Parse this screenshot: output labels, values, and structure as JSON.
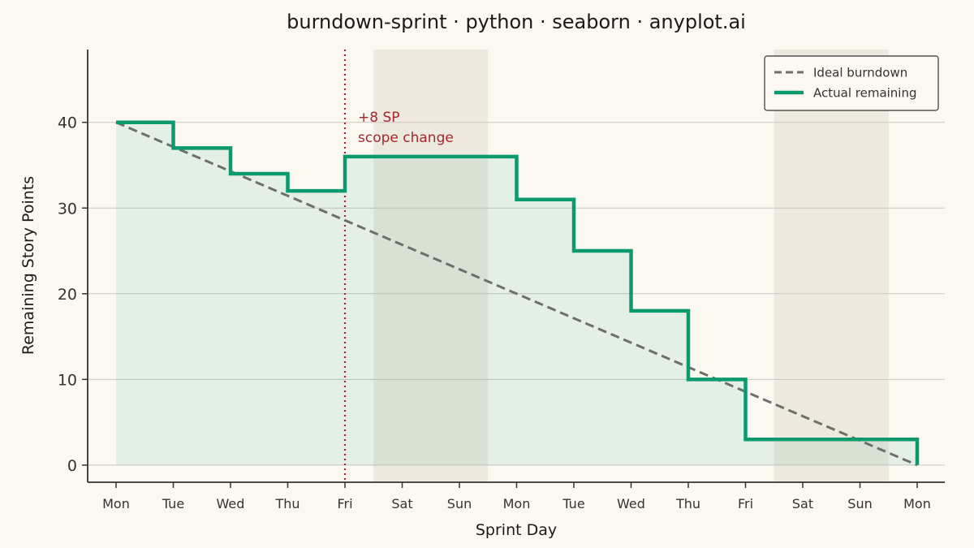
{
  "chart_data": {
    "type": "line",
    "title": "burndown-sprint · python · seaborn · anyplot.ai",
    "xlabel": "Sprint Day",
    "ylabel": "Remaining Story Points",
    "categories": [
      "Mon",
      "Tue",
      "Wed",
      "Thu",
      "Fri",
      "Sat",
      "Sun",
      "Mon",
      "Tue",
      "Wed",
      "Thu",
      "Fri",
      "Sat",
      "Sun",
      "Mon"
    ],
    "ylim": [
      -2,
      48.5
    ],
    "yticks": [
      0,
      10,
      20,
      30,
      40
    ],
    "grid": "horizontal",
    "legend_position": "top-right",
    "weekend_spans": [
      [
        5,
        6
      ],
      [
        12,
        13
      ]
    ],
    "series": [
      {
        "name": "Ideal burndown",
        "style": "dashed",
        "color": "#6E6E6A",
        "values": [
          40,
          37.14,
          34.29,
          31.43,
          28.57,
          25.71,
          22.86,
          20,
          17.14,
          14.29,
          11.43,
          8.57,
          5.71,
          2.86,
          0
        ]
      },
      {
        "name": "Actual remaining",
        "style": "step",
        "color": "#0A9A6E",
        "values": [
          40,
          37,
          34,
          32,
          36,
          36,
          36,
          31,
          25,
          18,
          10,
          3,
          3,
          3,
          0
        ]
      }
    ],
    "annotation": {
      "x_index": 4,
      "lines": [
        "+8 SP",
        "scope change"
      ],
      "color": "#A6262C"
    }
  }
}
